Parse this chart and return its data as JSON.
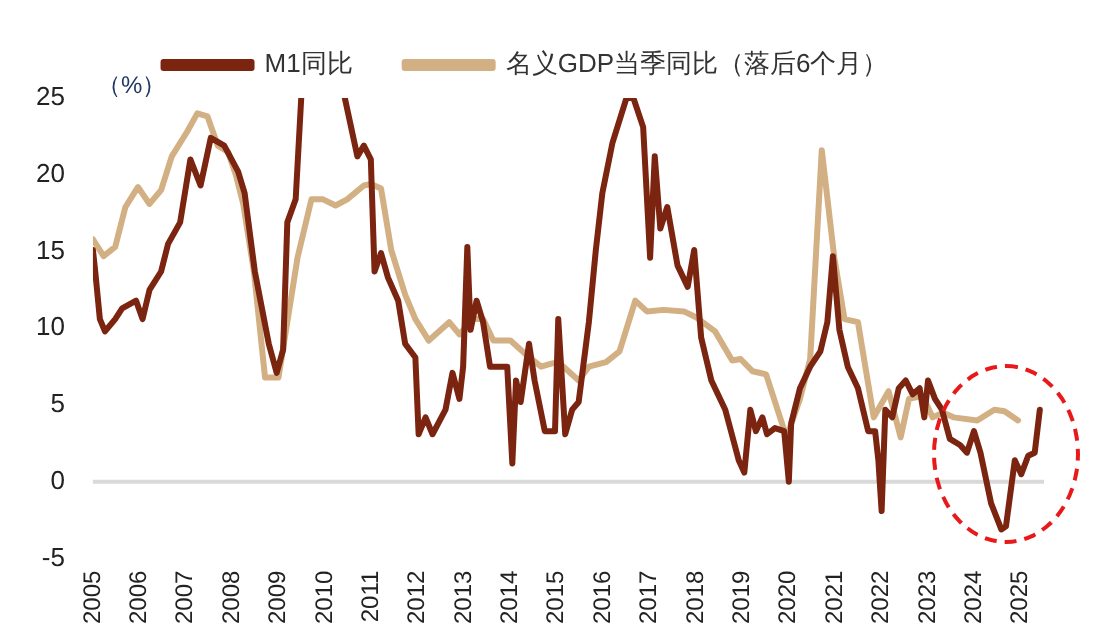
{
  "chart_data": {
    "type": "line",
    "ylabel": "（%）",
    "xlim": [
      2005,
      2025.5
    ],
    "ylim": [
      -5,
      25
    ],
    "xticks": [
      2005,
      2006,
      2007,
      2008,
      2009,
      2010,
      2011,
      2012,
      2013,
      2014,
      2015,
      2016,
      2017,
      2018,
      2019,
      2020,
      2021,
      2022,
      2023,
      2024,
      2025
    ],
    "yticks": [
      -5,
      0,
      5,
      10,
      15,
      20,
      25
    ],
    "grid": false,
    "ref_lines": [
      {
        "axis": "y",
        "value": 0,
        "color": "#d9d9d9"
      }
    ],
    "legend": "top",
    "marker": "none",
    "line_style": "solid",
    "series": [
      {
        "name": "M1同比",
        "color": "#7b2410",
        "x": [
          2005.0,
          2005.05,
          2005.15,
          2005.26,
          2005.48,
          2005.63,
          2005.93,
          2006.07,
          2006.22,
          2006.47,
          2006.62,
          2006.88,
          2007.1,
          2007.32,
          2007.54,
          2007.83,
          2008.13,
          2008.27,
          2008.49,
          2008.79,
          2008.96,
          2009.1,
          2009.19,
          2009.37,
          2009.49,
          2010.0,
          2010.43,
          2010.7,
          2010.84,
          2010.99,
          2011.07,
          2011.21,
          2011.36,
          2011.58,
          2011.73,
          2011.95,
          2012.02,
          2012.17,
          2012.32,
          2012.6,
          2012.75,
          2012.9,
          2012.98,
          2013.07,
          2013.14,
          2013.27,
          2013.41,
          2013.56,
          2013.93,
          2014.04,
          2014.12,
          2014.22,
          2014.4,
          2014.52,
          2014.74,
          2014.96,
          2015.03,
          2015.18,
          2015.33,
          2015.47,
          2015.69,
          2015.84,
          2015.98,
          2016.2,
          2016.5,
          2016.65,
          2016.86,
          2017.01,
          2017.11,
          2017.23,
          2017.38,
          2017.6,
          2017.82,
          2017.96,
          2018.11,
          2018.33,
          2018.63,
          2018.92,
          2019.04,
          2019.17,
          2019.29,
          2019.43,
          2019.53,
          2019.7,
          2019.9,
          2020.0,
          2020.05,
          2020.24,
          2020.46,
          2020.68,
          2020.83,
          2020.95,
          2021.09,
          2021.27,
          2021.49,
          2021.71,
          2021.86,
          2021.93,
          2022.0,
          2022.08,
          2022.23,
          2022.37,
          2022.52,
          2022.67,
          2022.82,
          2022.92,
          2023.0,
          2023.15,
          2023.3,
          2023.47,
          2023.69,
          2023.84,
          2023.99,
          2024.13,
          2024.36,
          2024.58,
          2024.68,
          2024.87,
          2025.01,
          2025.16,
          2025.3,
          2025.41
        ],
        "values": [
          15.1,
          13.7,
          10.6,
          9.8,
          10.6,
          11.3,
          11.8,
          10.6,
          12.5,
          13.7,
          15.5,
          16.9,
          21.0,
          19.3,
          22.4,
          21.9,
          20.2,
          18.8,
          13.7,
          9.0,
          7.1,
          8.6,
          16.9,
          18.4,
          25,
          null,
          25,
          21.2,
          21.9,
          21.0,
          13.7,
          14.9,
          13.3,
          11.8,
          9.0,
          8.1,
          3.1,
          4.2,
          3.1,
          4.7,
          7.1,
          5.4,
          7.5,
          15.3,
          9.9,
          11.8,
          10.4,
          7.5,
          7.5,
          1.2,
          6.6,
          5.2,
          9.0,
          6.6,
          3.3,
          3.3,
          10.6,
          3.1,
          4.7,
          5.2,
          10.4,
          15.1,
          18.8,
          22.1,
          25,
          25,
          23.1,
          14.6,
          21.2,
          16.5,
          17.9,
          14.1,
          12.7,
          15.1,
          9.4,
          6.6,
          4.7,
          1.4,
          0.6,
          4.7,
          3.3,
          4.2,
          3.1,
          3.5,
          3.3,
          0.0,
          3.8,
          6.1,
          7.5,
          8.5,
          10.4,
          14.7,
          9.9,
          7.5,
          6.1,
          3.3,
          3.3,
          1.4,
          -1.9,
          4.7,
          4.2,
          6.1,
          6.6,
          5.7,
          6.1,
          4.2,
          6.6,
          5.4,
          4.7,
          2.8,
          2.4,
          1.9,
          3.3,
          1.9,
          -1.4,
          -3.1,
          -2.9,
          1.4,
          0.5,
          1.7,
          1.9,
          4.7
        ]
      },
      {
        "name": "名义GDP当季同比（落后6个月）",
        "color": "#d2b083",
        "x": [
          2005.0,
          2005.23,
          2005.48,
          2005.7,
          2005.97,
          2006.22,
          2006.47,
          2006.7,
          2007.03,
          2007.25,
          2007.47,
          2007.69,
          2007.91,
          2008.08,
          2008.24,
          2008.47,
          2008.71,
          2009.0,
          2009.41,
          2009.71,
          2009.96,
          2010.23,
          2010.48,
          2010.84,
          2010.99,
          2011.21,
          2011.43,
          2011.73,
          2011.95,
          2012.24,
          2012.68,
          2012.9,
          2013.19,
          2013.41,
          2013.63,
          2014.0,
          2014.37,
          2014.66,
          2014.88,
          2015.03,
          2015.47,
          2015.69,
          2016.06,
          2016.35,
          2016.69,
          2016.94,
          2017.3,
          2017.74,
          2018.01,
          2018.41,
          2018.78,
          2018.96,
          2019.22,
          2019.51,
          2019.95,
          2020.24,
          2020.46,
          2020.71,
          2020.98,
          2021.2,
          2021.49,
          2021.83,
          2022.15,
          2022.41,
          2022.59,
          2022.88,
          2023.1,
          2023.33,
          2023.55,
          2024.06,
          2024.43,
          2024.65,
          2024.94
        ],
        "values": [
          15.8,
          14.7,
          15.3,
          17.9,
          19.2,
          18.1,
          19.0,
          21.2,
          22.8,
          24.0,
          23.8,
          21.9,
          21.5,
          20.0,
          18.1,
          13.7,
          6.8,
          6.8,
          14.6,
          18.4,
          18.4,
          18.0,
          18.4,
          19.3,
          19.4,
          19.1,
          15.1,
          12.2,
          10.6,
          9.2,
          10.4,
          9.6,
          10.6,
          10.6,
          9.2,
          9.2,
          8.2,
          7.5,
          7.7,
          7.8,
          6.6,
          7.5,
          7.8,
          8.5,
          11.8,
          11.1,
          11.2,
          11.1,
          10.7,
          9.8,
          7.9,
          8.0,
          7.2,
          7.0,
          2.9,
          5.4,
          8.0,
          21.6,
          14.6,
          10.6,
          10.4,
          4.2,
          5.9,
          2.9,
          5.4,
          5.6,
          4.2,
          4.5,
          4.2,
          4.0,
          4.7,
          4.6,
          4.0
        ]
      }
    ]
  }
}
